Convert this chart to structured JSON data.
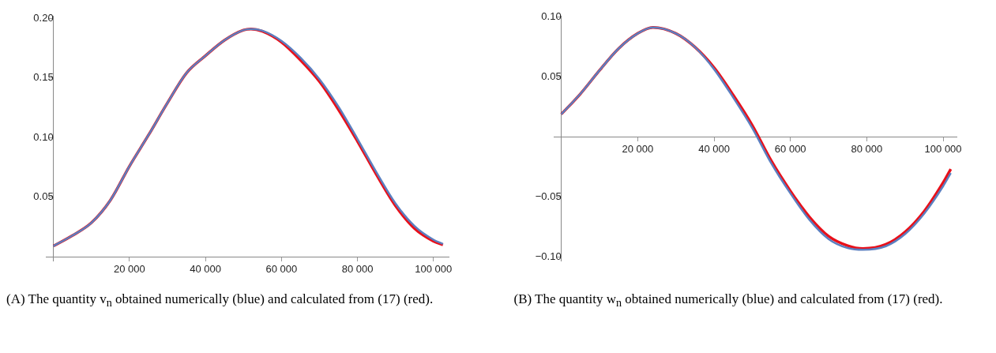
{
  "chart_data": [
    {
      "type": "line",
      "x": [
        0,
        5000,
        10000,
        15000,
        20000,
        25000,
        30000,
        35000,
        40000,
        45000,
        50000,
        52000,
        55000,
        60000,
        65000,
        70000,
        75000,
        80000,
        85000,
        90000,
        95000,
        100000,
        102500
      ],
      "series": [
        {
          "color": "#5b7fc0",
          "values": [
            0.0092,
            0.018,
            0.0287,
            0.0476,
            0.076,
            0.102,
            0.129,
            0.154,
            0.1685,
            0.1815,
            0.19,
            0.191,
            0.1895,
            0.181,
            0.167,
            0.149,
            0.126,
            0.099,
            0.071,
            0.045,
            0.026,
            0.0145,
            0.011
          ]
        },
        {
          "color": "#e8101a",
          "values": [
            0.0092,
            0.018,
            0.0287,
            0.0476,
            0.076,
            0.102,
            0.129,
            0.154,
            0.1685,
            0.1815,
            0.19,
            0.191,
            0.189,
            0.18,
            0.165,
            0.147,
            0.1235,
            0.097,
            0.069,
            0.043,
            0.024,
            0.0133,
            0.0102
          ]
        }
      ],
      "xlim": [
        -2000,
        104000
      ],
      "ylim": [
        -0.003,
        0.202
      ],
      "xticks": [
        {
          "value": 20000,
          "label": "20 000"
        },
        {
          "value": 40000,
          "label": "40 000"
        },
        {
          "value": 60000,
          "label": "60 000"
        },
        {
          "value": 80000,
          "label": "80 000"
        },
        {
          "value": 100000,
          "label": "100 000"
        }
      ],
      "yticks": [
        {
          "value": 0.05,
          "label": "0.05"
        },
        {
          "value": 0.1,
          "label": "0.10"
        },
        {
          "value": 0.15,
          "label": "0.15"
        },
        {
          "value": 0.2,
          "label": "0.20"
        }
      ],
      "marker": "none",
      "grid": false,
      "legend": false,
      "annotations": [
        "(A) The quantity v$_{n}$ obtained numerically (blue) and calculated from (17) (red)."
      ]
    },
    {
      "type": "line",
      "x": [
        0,
        5000,
        10000,
        15000,
        20000,
        24000,
        30000,
        35000,
        40000,
        45000,
        50000,
        55000,
        60000,
        65000,
        70000,
        75000,
        79000,
        85000,
        90000,
        95000,
        100000,
        102000
      ],
      "series": [
        {
          "color": "#5b7fc0",
          "values": [
            0.019,
            0.036,
            0.0555,
            0.0737,
            0.0863,
            0.0913,
            0.0863,
            0.0749,
            0.0565,
            0.033,
            0.0075,
            -0.022,
            -0.047,
            -0.069,
            -0.085,
            -0.0925,
            -0.094,
            -0.091,
            -0.081,
            -0.064,
            -0.041,
            -0.03
          ]
        },
        {
          "color": "#e8101a",
          "values": [
            0.019,
            0.036,
            0.0555,
            0.0737,
            0.0863,
            0.0913,
            0.0863,
            0.0749,
            0.0578,
            0.035,
            0.0098,
            -0.0199,
            -0.045,
            -0.0667,
            -0.0827,
            -0.0906,
            -0.093,
            -0.0895,
            -0.0792,
            -0.062,
            -0.038,
            -0.0267
          ]
        }
      ],
      "xlim": [
        -2000,
        103500
      ],
      "ylim": [
        -0.103,
        0.101
      ],
      "xticks": [
        {
          "value": 20000,
          "label": "20 000"
        },
        {
          "value": 40000,
          "label": "40 000"
        },
        {
          "value": 60000,
          "label": "60 000"
        },
        {
          "value": 80000,
          "label": "80 000"
        },
        {
          "value": 100000,
          "label": "100 000"
        }
      ],
      "yticks": [
        {
          "value": -0.1,
          "label": "−0.10"
        },
        {
          "value": -0.05,
          "label": "−0.05"
        },
        {
          "value": 0.05,
          "label": "0.05"
        },
        {
          "value": 0.1,
          "label": "0.10"
        }
      ],
      "marker": "none",
      "grid": false,
      "legend": false,
      "annotations": [
        "(B) The quantity w$_{n}$ obtained numerically (blue) and calculated from (17) (red)."
      ]
    }
  ]
}
